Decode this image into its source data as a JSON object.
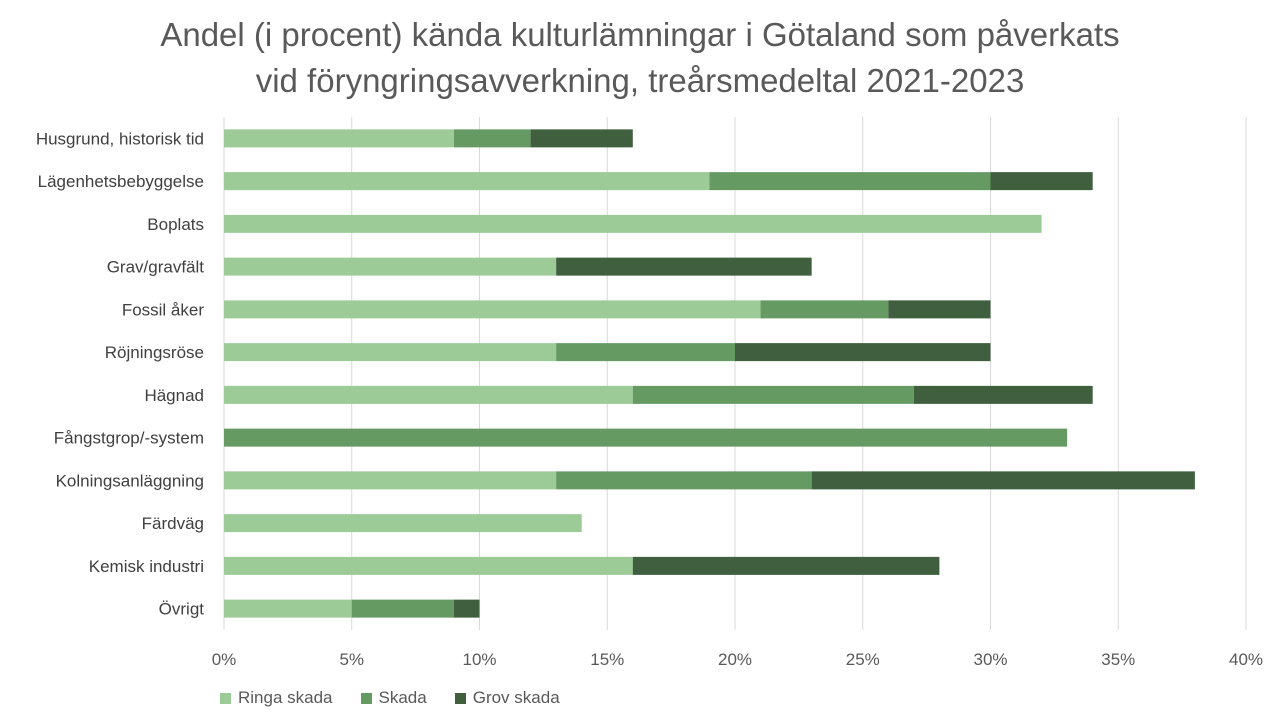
{
  "chart_data": {
    "type": "bar",
    "orientation": "horizontal",
    "stacked": true,
    "title_lines": [
      "Andel (i procent) kända kulturlämningar  i Götaland som påverkats",
      "vid föryngringsavverkning,  treårsmedeltal  2021-2023"
    ],
    "categories": [
      "Husgrund, historisk tid",
      "Lägenhetsbebyggelse",
      "Boplats",
      "Grav/gravfält",
      "Fossil åker",
      "Röjningsröse",
      "Hägnad",
      "Fångstgrop/-system",
      "Kolningsanläggning",
      "Färdväg",
      "Kemisk industri",
      "Övrigt"
    ],
    "series": [
      {
        "name": "Ringa skada",
        "color": "#9ccb98",
        "values": [
          9,
          19,
          32,
          13,
          21,
          13,
          16,
          0,
          13,
          14,
          16,
          5
        ]
      },
      {
        "name": "Skada",
        "color": "#659a63",
        "values": [
          3,
          11,
          0,
          0,
          5,
          7,
          11,
          33,
          10,
          0,
          0,
          4
        ]
      },
      {
        "name": "Grov skada",
        "color": "#3f5f3e",
        "values": [
          4,
          4,
          0,
          10,
          4,
          10,
          7,
          0,
          15,
          0,
          12,
          1
        ]
      }
    ],
    "xlim": [
      0,
      40
    ],
    "x_ticks": [
      "0%",
      "5%",
      "10%",
      "15%",
      "20%",
      "25%",
      "30%",
      "35%",
      "40%"
    ],
    "grid": "vertical",
    "legend_position": "bottom-left"
  }
}
